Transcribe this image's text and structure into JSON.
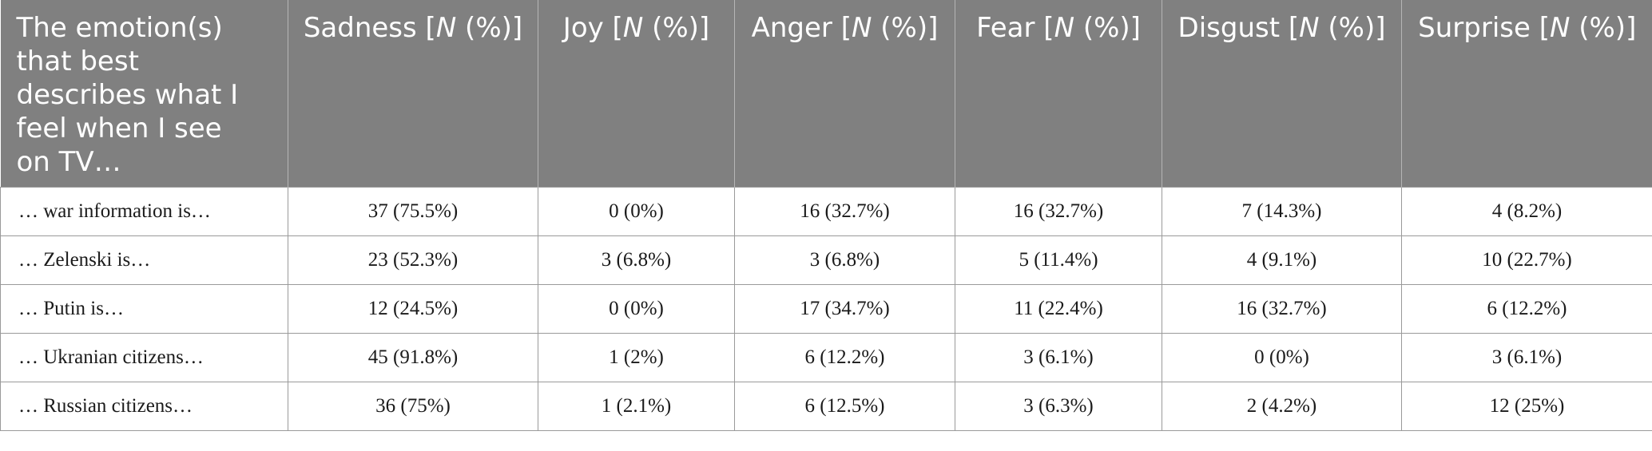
{
  "table": {
    "header": {
      "first": "The emotion(s) that best describes what I feel when I see on TV…",
      "columns": [
        {
          "label": "Sadness",
          "italic": "N",
          "suffix_open": " [",
          "suffix_close": " (%)]"
        },
        {
          "label": "Joy",
          "italic": "N",
          "suffix_open": " [",
          "suffix_close": " (%)]"
        },
        {
          "label": "Anger",
          "italic": "N",
          "suffix_open": " [",
          "suffix_close": " (%)]"
        },
        {
          "label": "Fear",
          "italic": "N",
          "suffix_open": " [",
          "suffix_close": " (%)]"
        },
        {
          "label": "Disgust",
          "italic": "N",
          "suffix_open": " [",
          "suffix_close": " (%)]"
        },
        {
          "label": "Surprise",
          "italic": "N",
          "suffix_open": " [",
          "suffix_close": " (%)]"
        }
      ]
    },
    "rows": [
      {
        "label": "… war information is…",
        "cells": [
          "37 (75.5%)",
          "0 (0%)",
          "16 (32.7%)",
          "16 (32.7%)",
          "7 (14.3%)",
          "4 (8.2%)"
        ]
      },
      {
        "label": "… Zelenski is…",
        "cells": [
          "23 (52.3%)",
          "3 (6.8%)",
          "3 (6.8%)",
          "5 (11.4%)",
          "4 (9.1%)",
          "10 (22.7%)"
        ]
      },
      {
        "label": "… Putin is…",
        "cells": [
          "12 (24.5%)",
          "0 (0%)",
          "17 (34.7%)",
          "11 (22.4%)",
          "16 (32.7%)",
          "6 (12.2%)"
        ]
      },
      {
        "label": "… Ukranian citizens…",
        "cells": [
          "45 (91.8%)",
          "1 (2%)",
          "6 (12.2%)",
          "3 (6.1%)",
          "0 (0%)",
          "3 (6.1%)"
        ]
      },
      {
        "label": "… Russian citizens…",
        "cells": [
          "36 (75%)",
          "1 (2.1%)",
          "6 (12.5%)",
          "3 (6.3%)",
          "2 (4.2%)",
          "12 (25%)"
        ]
      }
    ]
  }
}
